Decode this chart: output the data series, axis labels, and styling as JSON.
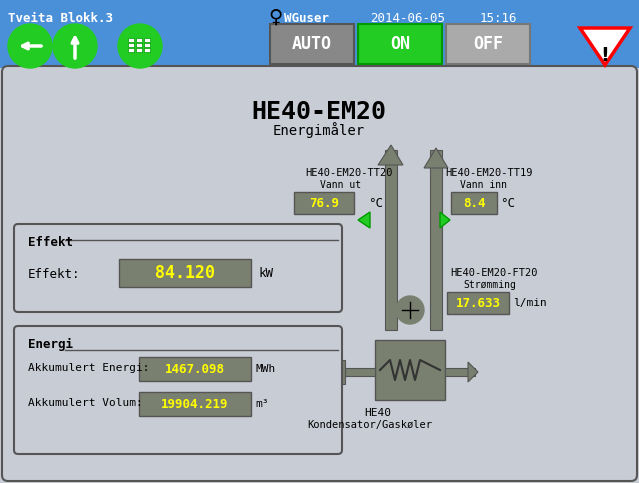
{
  "title": "HE40-EM20",
  "subtitle": "Energimåler",
  "header_text": "Tveita Blokk.3",
  "user": "WGuser",
  "date": "2014-06-05",
  "time": "15:16",
  "bg_color": "#c8ccd4",
  "header_bg": "#4a90d9",
  "dark_bg": "#2a2a2a",
  "green_btn": "#22cc22",
  "gray_btn": "#aaaaaa",
  "value_bg": "#7a8070",
  "yellow_text": "#ffff00",
  "white_text": "#ffffff",
  "black_text": "#000000",
  "pipe_color": "#7a8070",
  "effekt_label": "Effekt",
  "effekt_sub": "Effekt:",
  "effekt_value": "84.120",
  "effekt_unit": "kW",
  "energi_label": "Energi",
  "akk_energi_label": "Akkumulert Energi:",
  "akk_energi_value": "1467.098",
  "akk_energi_unit": "MWh",
  "akk_volum_label": "Akkumulert Volum:",
  "akk_volum_value": "19904.219",
  "akk_volum_unit": "m³",
  "tt20_label": "HE40-EM20-TT20",
  "tt20_sub": "Vann ut",
  "tt20_value": "76.9",
  "tt20_unit": "°C",
  "tt19_label": "HE40-EM20-TT19",
  "tt19_sub": "Vann inn",
  "tt19_value": "8.4",
  "tt19_unit": "°C",
  "ft20_label": "HE40-EM20-FT20",
  "ft20_sub": "Strømming",
  "ft20_value": "17.633",
  "ft20_unit": "l/min",
  "he40_label": "HE40",
  "he40_sub": "Kondensator/Gaskøler"
}
